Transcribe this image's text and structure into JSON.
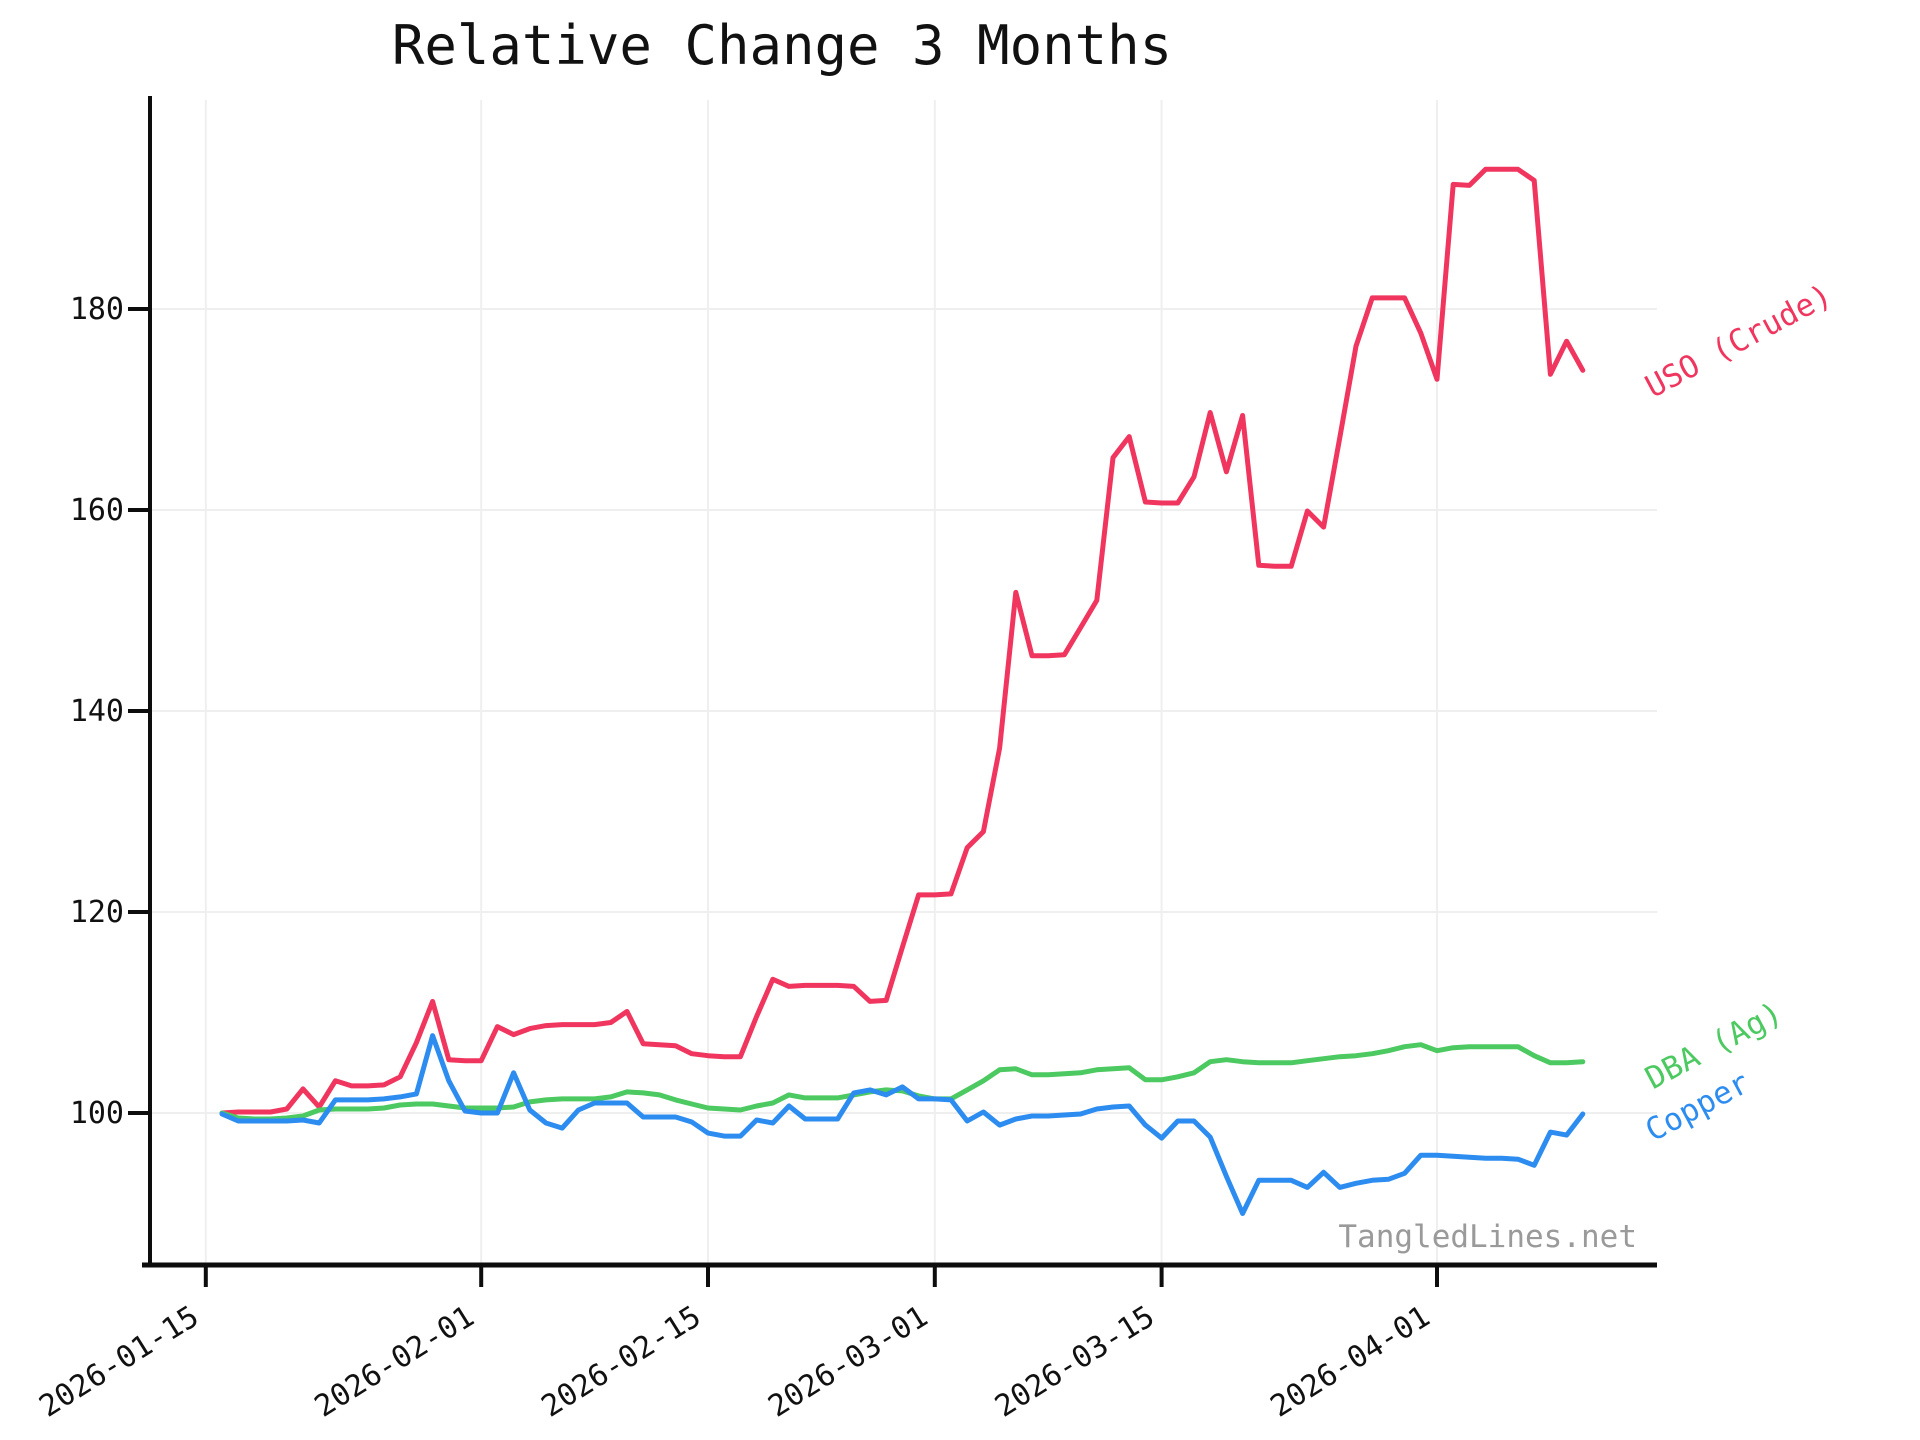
{
  "title": "Relative Change 3 Months",
  "watermark": "TangledLines.net",
  "chart_data": {
    "type": "line",
    "title": "Relative Change 3 Months",
    "xlabel": "",
    "ylabel": "",
    "grid": true,
    "legend_position": "end-of-line-labels",
    "ylim": [
      84.5,
      198.5
    ],
    "yticks": [
      100,
      120,
      140,
      160,
      180
    ],
    "xticks": [
      "2026-01-15",
      "2026-02-01",
      "2026-02-15",
      "2026-03-01",
      "2026-03-15",
      "2026-04-01"
    ],
    "x": [
      "2026-01-16",
      "2026-01-17",
      "2026-01-18",
      "2026-01-19",
      "2026-01-20",
      "2026-01-21",
      "2026-01-22",
      "2026-01-23",
      "2026-01-24",
      "2026-01-25",
      "2026-01-26",
      "2026-01-27",
      "2026-01-28",
      "2026-01-29",
      "2026-01-30",
      "2026-01-31",
      "2026-02-01",
      "2026-02-02",
      "2026-02-03",
      "2026-02-04",
      "2026-02-05",
      "2026-02-06",
      "2026-02-07",
      "2026-02-08",
      "2026-02-09",
      "2026-02-10",
      "2026-02-11",
      "2026-02-12",
      "2026-02-13",
      "2026-02-14",
      "2026-02-15",
      "2026-02-16",
      "2026-02-17",
      "2026-02-18",
      "2026-02-19",
      "2026-02-20",
      "2026-02-21",
      "2026-02-22",
      "2026-02-23",
      "2026-02-24",
      "2026-02-25",
      "2026-02-26",
      "2026-02-27",
      "2026-02-28",
      "2026-03-01",
      "2026-03-02",
      "2026-03-03",
      "2026-03-04",
      "2026-03-05",
      "2026-03-06",
      "2026-03-07",
      "2026-03-08",
      "2026-03-09",
      "2026-03-10",
      "2026-03-11",
      "2026-03-12",
      "2026-03-13",
      "2026-03-14",
      "2026-03-15",
      "2026-03-16",
      "2026-03-17",
      "2026-03-18",
      "2026-03-19",
      "2026-03-20",
      "2026-03-21",
      "2026-03-22",
      "2026-03-23",
      "2026-03-24",
      "2026-03-25",
      "2026-03-26",
      "2026-03-27",
      "2026-03-28",
      "2026-03-29",
      "2026-03-30",
      "2026-03-31",
      "2026-04-01",
      "2026-04-02",
      "2026-04-03",
      "2026-04-04",
      "2026-04-05",
      "2026-04-06",
      "2026-04-07",
      "2026-04-08",
      "2026-04-09",
      "2026-04-10"
    ],
    "series": [
      {
        "name": "USO (Crude)",
        "color": "#f0355e",
        "values": [
          100.0,
          100.1,
          100.1,
          100.1,
          100.4,
          102.4,
          100.6,
          103.2,
          102.7,
          102.7,
          102.8,
          103.6,
          107.0,
          111.1,
          105.3,
          105.2,
          105.2,
          108.6,
          107.8,
          108.4,
          108.7,
          108.8,
          108.8,
          108.8,
          109.0,
          110.1,
          106.9,
          106.8,
          106.7,
          105.9,
          105.7,
          105.6,
          105.6,
          109.6,
          113.3,
          112.6,
          112.7,
          112.7,
          112.7,
          112.6,
          111.1,
          111.2,
          116.5,
          121.7,
          121.7,
          121.8,
          126.4,
          128.0,
          136.3,
          151.8,
          145.5,
          145.5,
          145.6,
          148.3,
          151.0,
          165.2,
          167.3,
          160.8,
          160.7,
          160.7,
          163.3,
          169.7,
          163.8,
          169.4,
          154.5,
          154.4,
          154.4,
          159.9,
          158.3,
          167.2,
          176.3,
          181.1,
          181.1,
          181.1,
          177.6,
          173.0,
          192.4,
          192.3,
          193.9,
          193.9,
          193.9,
          192.8,
          173.5,
          176.8,
          173.9
        ]
      },
      {
        "name": "DBA (Ag)",
        "color": "#4cc960",
        "values": [
          100.0,
          99.5,
          99.4,
          99.4,
          99.5,
          99.7,
          100.3,
          100.4,
          100.4,
          100.4,
          100.5,
          100.8,
          100.9,
          100.9,
          100.7,
          100.5,
          100.5,
          100.5,
          100.6,
          101.1,
          101.3,
          101.4,
          101.4,
          101.4,
          101.6,
          102.1,
          102.0,
          101.8,
          101.3,
          100.9,
          100.5,
          100.4,
          100.3,
          100.7,
          101.0,
          101.8,
          101.5,
          101.5,
          101.5,
          101.8,
          102.1,
          102.3,
          102.2,
          101.7,
          101.4,
          101.4,
          102.3,
          103.2,
          104.3,
          104.4,
          103.8,
          103.8,
          103.9,
          104.0,
          104.3,
          104.4,
          104.5,
          103.3,
          103.3,
          103.6,
          104.0,
          105.1,
          105.3,
          105.1,
          105.0,
          105.0,
          105.0,
          105.2,
          105.4,
          105.6,
          105.7,
          105.9,
          106.2,
          106.6,
          106.8,
          106.2,
          106.5,
          106.6,
          106.6,
          106.6,
          106.6,
          105.7,
          105.0,
          105.0,
          105.1
        ]
      },
      {
        "name": "Copper",
        "color": "#2d8cf0",
        "values": [
          99.9,
          99.2,
          99.2,
          99.2,
          99.2,
          99.3,
          99.0,
          101.3,
          101.3,
          101.3,
          101.4,
          101.6,
          101.9,
          107.7,
          103.2,
          100.2,
          100.0,
          100.0,
          104.0,
          100.3,
          99.0,
          98.5,
          100.3,
          101.0,
          101.0,
          101.0,
          99.6,
          99.6,
          99.6,
          99.1,
          98.0,
          97.7,
          97.7,
          99.3,
          99.0,
          100.7,
          99.4,
          99.4,
          99.4,
          102.0,
          102.3,
          101.8,
          102.6,
          101.4,
          101.4,
          101.3,
          99.2,
          100.1,
          98.8,
          99.4,
          99.7,
          99.7,
          99.8,
          99.9,
          100.4,
          100.6,
          100.7,
          98.8,
          97.5,
          99.2,
          99.2,
          97.6,
          93.7,
          90.0,
          93.3,
          93.3,
          93.3,
          92.6,
          94.1,
          92.6,
          93.0,
          93.3,
          93.4,
          94.0,
          95.8,
          95.8,
          95.7,
          95.6,
          95.5,
          95.5,
          95.4,
          94.8,
          98.1,
          97.8,
          99.9
        ]
      }
    ]
  }
}
